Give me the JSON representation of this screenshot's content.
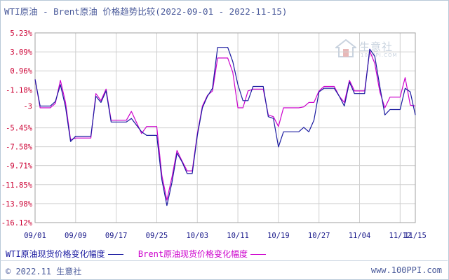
{
  "title": "WTI原油 - Brent原油 价格趋势比较(2022-09-01 - 2022-11-15)",
  "watermark": {
    "name": "生意社",
    "sub": "100PPI.COM"
  },
  "legend": [
    {
      "label": "WTI原油现货价格变化幅度",
      "color": "#1a1aa0"
    },
    {
      "label": "Brent原油现货价格变化幅度",
      "color": "#cc00cc"
    }
  ],
  "footer": {
    "left": "© 2022.11 生意社",
    "right": "www.100PPI.com"
  },
  "colors": {
    "axis_label": "#cc0033",
    "grid": "#d0d0d0"
  },
  "chart_data": {
    "type": "line",
    "ylim": [
      -16.12,
      5.23
    ],
    "y_ticks": [
      "5.23%",
      "3.09%",
      "0.96%",
      "-1.18%",
      "-3",
      "-5.45%",
      "-7.58%",
      "-9.71%",
      "-11.85%",
      "-13.98%",
      "-16.12%"
    ],
    "y_tick_values": [
      5.23,
      3.09,
      0.96,
      -1.18,
      -3.0,
      -5.45,
      -7.58,
      -9.71,
      -11.85,
      -13.98,
      -16.12
    ],
    "x_ticks": [
      {
        "date": "2022-09-01",
        "label": "09/01"
      },
      {
        "date": "2022-09-09",
        "label": "09/09"
      },
      {
        "date": "2022-09-17",
        "label": "09/17"
      },
      {
        "date": "2022-09-25",
        "label": "09/25"
      },
      {
        "date": "2022-10-03",
        "label": "10/03"
      },
      {
        "date": "2022-10-11",
        "label": "10/11"
      },
      {
        "date": "2022-10-19",
        "label": "10/19"
      },
      {
        "date": "2022-10-27",
        "label": "10/27"
      },
      {
        "date": "2022-11-04",
        "label": "11/04"
      },
      {
        "date": "2022-11-12",
        "label": "11/12"
      },
      {
        "date": "2022-11-15",
        "label": "11/15"
      }
    ],
    "xlim": [
      "2022-09-01",
      "2022-11-15"
    ],
    "series": [
      {
        "name": "WTI原油现货价格变化幅度",
        "color": "#1a1aa0",
        "points": [
          [
            "2022-09-01",
            0.0
          ],
          [
            "2022-09-02",
            -3.0
          ],
          [
            "2022-09-04",
            -3.0
          ],
          [
            "2022-09-05",
            -2.5
          ],
          [
            "2022-09-06",
            -0.6
          ],
          [
            "2022-09-07",
            -3.1
          ],
          [
            "2022-09-08",
            -7.0
          ],
          [
            "2022-09-09",
            -6.4
          ],
          [
            "2022-09-12",
            -6.4
          ],
          [
            "2022-09-13",
            -1.9
          ],
          [
            "2022-09-14",
            -2.6
          ],
          [
            "2022-09-15",
            -1.3
          ],
          [
            "2022-09-16",
            -4.8
          ],
          [
            "2022-09-19",
            -4.8
          ],
          [
            "2022-09-20",
            -4.4
          ],
          [
            "2022-09-22",
            -5.9
          ],
          [
            "2022-09-23",
            -6.3
          ],
          [
            "2022-09-25",
            -6.3
          ],
          [
            "2022-09-26",
            -11.3
          ],
          [
            "2022-09-27",
            -14.2
          ],
          [
            "2022-09-28",
            -11.6
          ],
          [
            "2022-09-29",
            -8.3
          ],
          [
            "2022-09-30",
            -9.3
          ],
          [
            "2022-10-01",
            -10.6
          ],
          [
            "2022-10-02",
            -10.6
          ],
          [
            "2022-10-03",
            -6.3
          ],
          [
            "2022-10-04",
            -3.2
          ],
          [
            "2022-10-05",
            -1.9
          ],
          [
            "2022-10-06",
            -1.0
          ],
          [
            "2022-10-07",
            3.6
          ],
          [
            "2022-10-08",
            3.6
          ],
          [
            "2022-10-09",
            3.6
          ],
          [
            "2022-10-10",
            2.0
          ],
          [
            "2022-10-11",
            -0.6
          ],
          [
            "2022-10-12",
            -2.4
          ],
          [
            "2022-10-13",
            -2.4
          ],
          [
            "2022-10-14",
            -0.8
          ],
          [
            "2022-10-16",
            -0.8
          ],
          [
            "2022-10-17",
            -4.2
          ],
          [
            "2022-10-18",
            -4.4
          ],
          [
            "2022-10-19",
            -7.6
          ],
          [
            "2022-10-20",
            -5.9
          ],
          [
            "2022-10-23",
            -5.9
          ],
          [
            "2022-10-24",
            -5.4
          ],
          [
            "2022-10-25",
            -5.9
          ],
          [
            "2022-10-26",
            -4.6
          ],
          [
            "2022-10-27",
            -1.4
          ],
          [
            "2022-10-28",
            -1.0
          ],
          [
            "2022-10-30",
            -1.0
          ],
          [
            "2022-10-31",
            -1.9
          ],
          [
            "2022-11-01",
            -3.0
          ],
          [
            "2022-11-02",
            -0.3
          ],
          [
            "2022-11-03",
            -1.6
          ],
          [
            "2022-11-05",
            -1.6
          ],
          [
            "2022-11-06",
            3.4
          ],
          [
            "2022-11-07",
            2.6
          ],
          [
            "2022-11-08",
            -0.8
          ],
          [
            "2022-11-09",
            -4.0
          ],
          [
            "2022-11-10",
            -3.4
          ],
          [
            "2022-11-11",
            -3.4
          ],
          [
            "2022-11-12",
            -3.4
          ],
          [
            "2022-11-13",
            -1.0
          ],
          [
            "2022-11-14",
            -1.4
          ],
          [
            "2022-11-15",
            -4.0
          ]
        ]
      },
      {
        "name": "Brent原油现货价格变化幅度",
        "color": "#cc00cc",
        "points": [
          [
            "2022-09-01",
            0.0
          ],
          [
            "2022-09-02",
            -3.2
          ],
          [
            "2022-09-04",
            -3.2
          ],
          [
            "2022-09-05",
            -2.7
          ],
          [
            "2022-09-06",
            -0.1
          ],
          [
            "2022-09-07",
            -2.6
          ],
          [
            "2022-09-08",
            -6.8
          ],
          [
            "2022-09-09",
            -6.6
          ],
          [
            "2022-09-12",
            -6.6
          ],
          [
            "2022-09-13",
            -1.6
          ],
          [
            "2022-09-14",
            -2.4
          ],
          [
            "2022-09-15",
            -1.1
          ],
          [
            "2022-09-16",
            -4.6
          ],
          [
            "2022-09-19",
            -4.6
          ],
          [
            "2022-09-20",
            -3.6
          ],
          [
            "2022-09-22",
            -6.1
          ],
          [
            "2022-09-23",
            -5.3
          ],
          [
            "2022-09-25",
            -5.3
          ],
          [
            "2022-09-26",
            -10.8
          ],
          [
            "2022-09-27",
            -13.6
          ],
          [
            "2022-09-28",
            -11.0
          ],
          [
            "2022-09-29",
            -8.0
          ],
          [
            "2022-09-30",
            -9.2
          ],
          [
            "2022-10-01",
            -10.3
          ],
          [
            "2022-10-02",
            -10.3
          ],
          [
            "2022-10-03",
            -6.1
          ],
          [
            "2022-10-04",
            -3.0
          ],
          [
            "2022-10-05",
            -1.8
          ],
          [
            "2022-10-06",
            -1.3
          ],
          [
            "2022-10-07",
            2.4
          ],
          [
            "2022-10-08",
            2.4
          ],
          [
            "2022-10-09",
            2.4
          ],
          [
            "2022-10-10",
            0.8
          ],
          [
            "2022-10-11",
            -3.2
          ],
          [
            "2022-10-12",
            -3.2
          ],
          [
            "2022-10-13",
            -1.3
          ],
          [
            "2022-10-14",
            -1.1
          ],
          [
            "2022-10-16",
            -1.1
          ],
          [
            "2022-10-17",
            -4.0
          ],
          [
            "2022-10-18",
            -4.2
          ],
          [
            "2022-10-19",
            -5.3
          ],
          [
            "2022-10-20",
            -3.2
          ],
          [
            "2022-10-23",
            -3.2
          ],
          [
            "2022-10-24",
            -3.1
          ],
          [
            "2022-10-25",
            -2.6
          ],
          [
            "2022-10-26",
            -2.6
          ],
          [
            "2022-10-27",
            -1.3
          ],
          [
            "2022-10-28",
            -0.8
          ],
          [
            "2022-10-30",
            -0.8
          ],
          [
            "2022-10-31",
            -1.9
          ],
          [
            "2022-11-01",
            -2.6
          ],
          [
            "2022-11-02",
            -0.1
          ],
          [
            "2022-11-03",
            -1.3
          ],
          [
            "2022-11-05",
            -1.3
          ],
          [
            "2022-11-06",
            3.2
          ],
          [
            "2022-11-07",
            1.8
          ],
          [
            "2022-11-08",
            -1.4
          ],
          [
            "2022-11-09",
            -3.2
          ],
          [
            "2022-11-10",
            -2.0
          ],
          [
            "2022-11-11",
            -2.0
          ],
          [
            "2022-11-12",
            -2.0
          ],
          [
            "2022-11-13",
            0.2
          ],
          [
            "2022-11-14",
            -2.9
          ],
          [
            "2022-11-15",
            -3.0
          ]
        ]
      }
    ]
  }
}
